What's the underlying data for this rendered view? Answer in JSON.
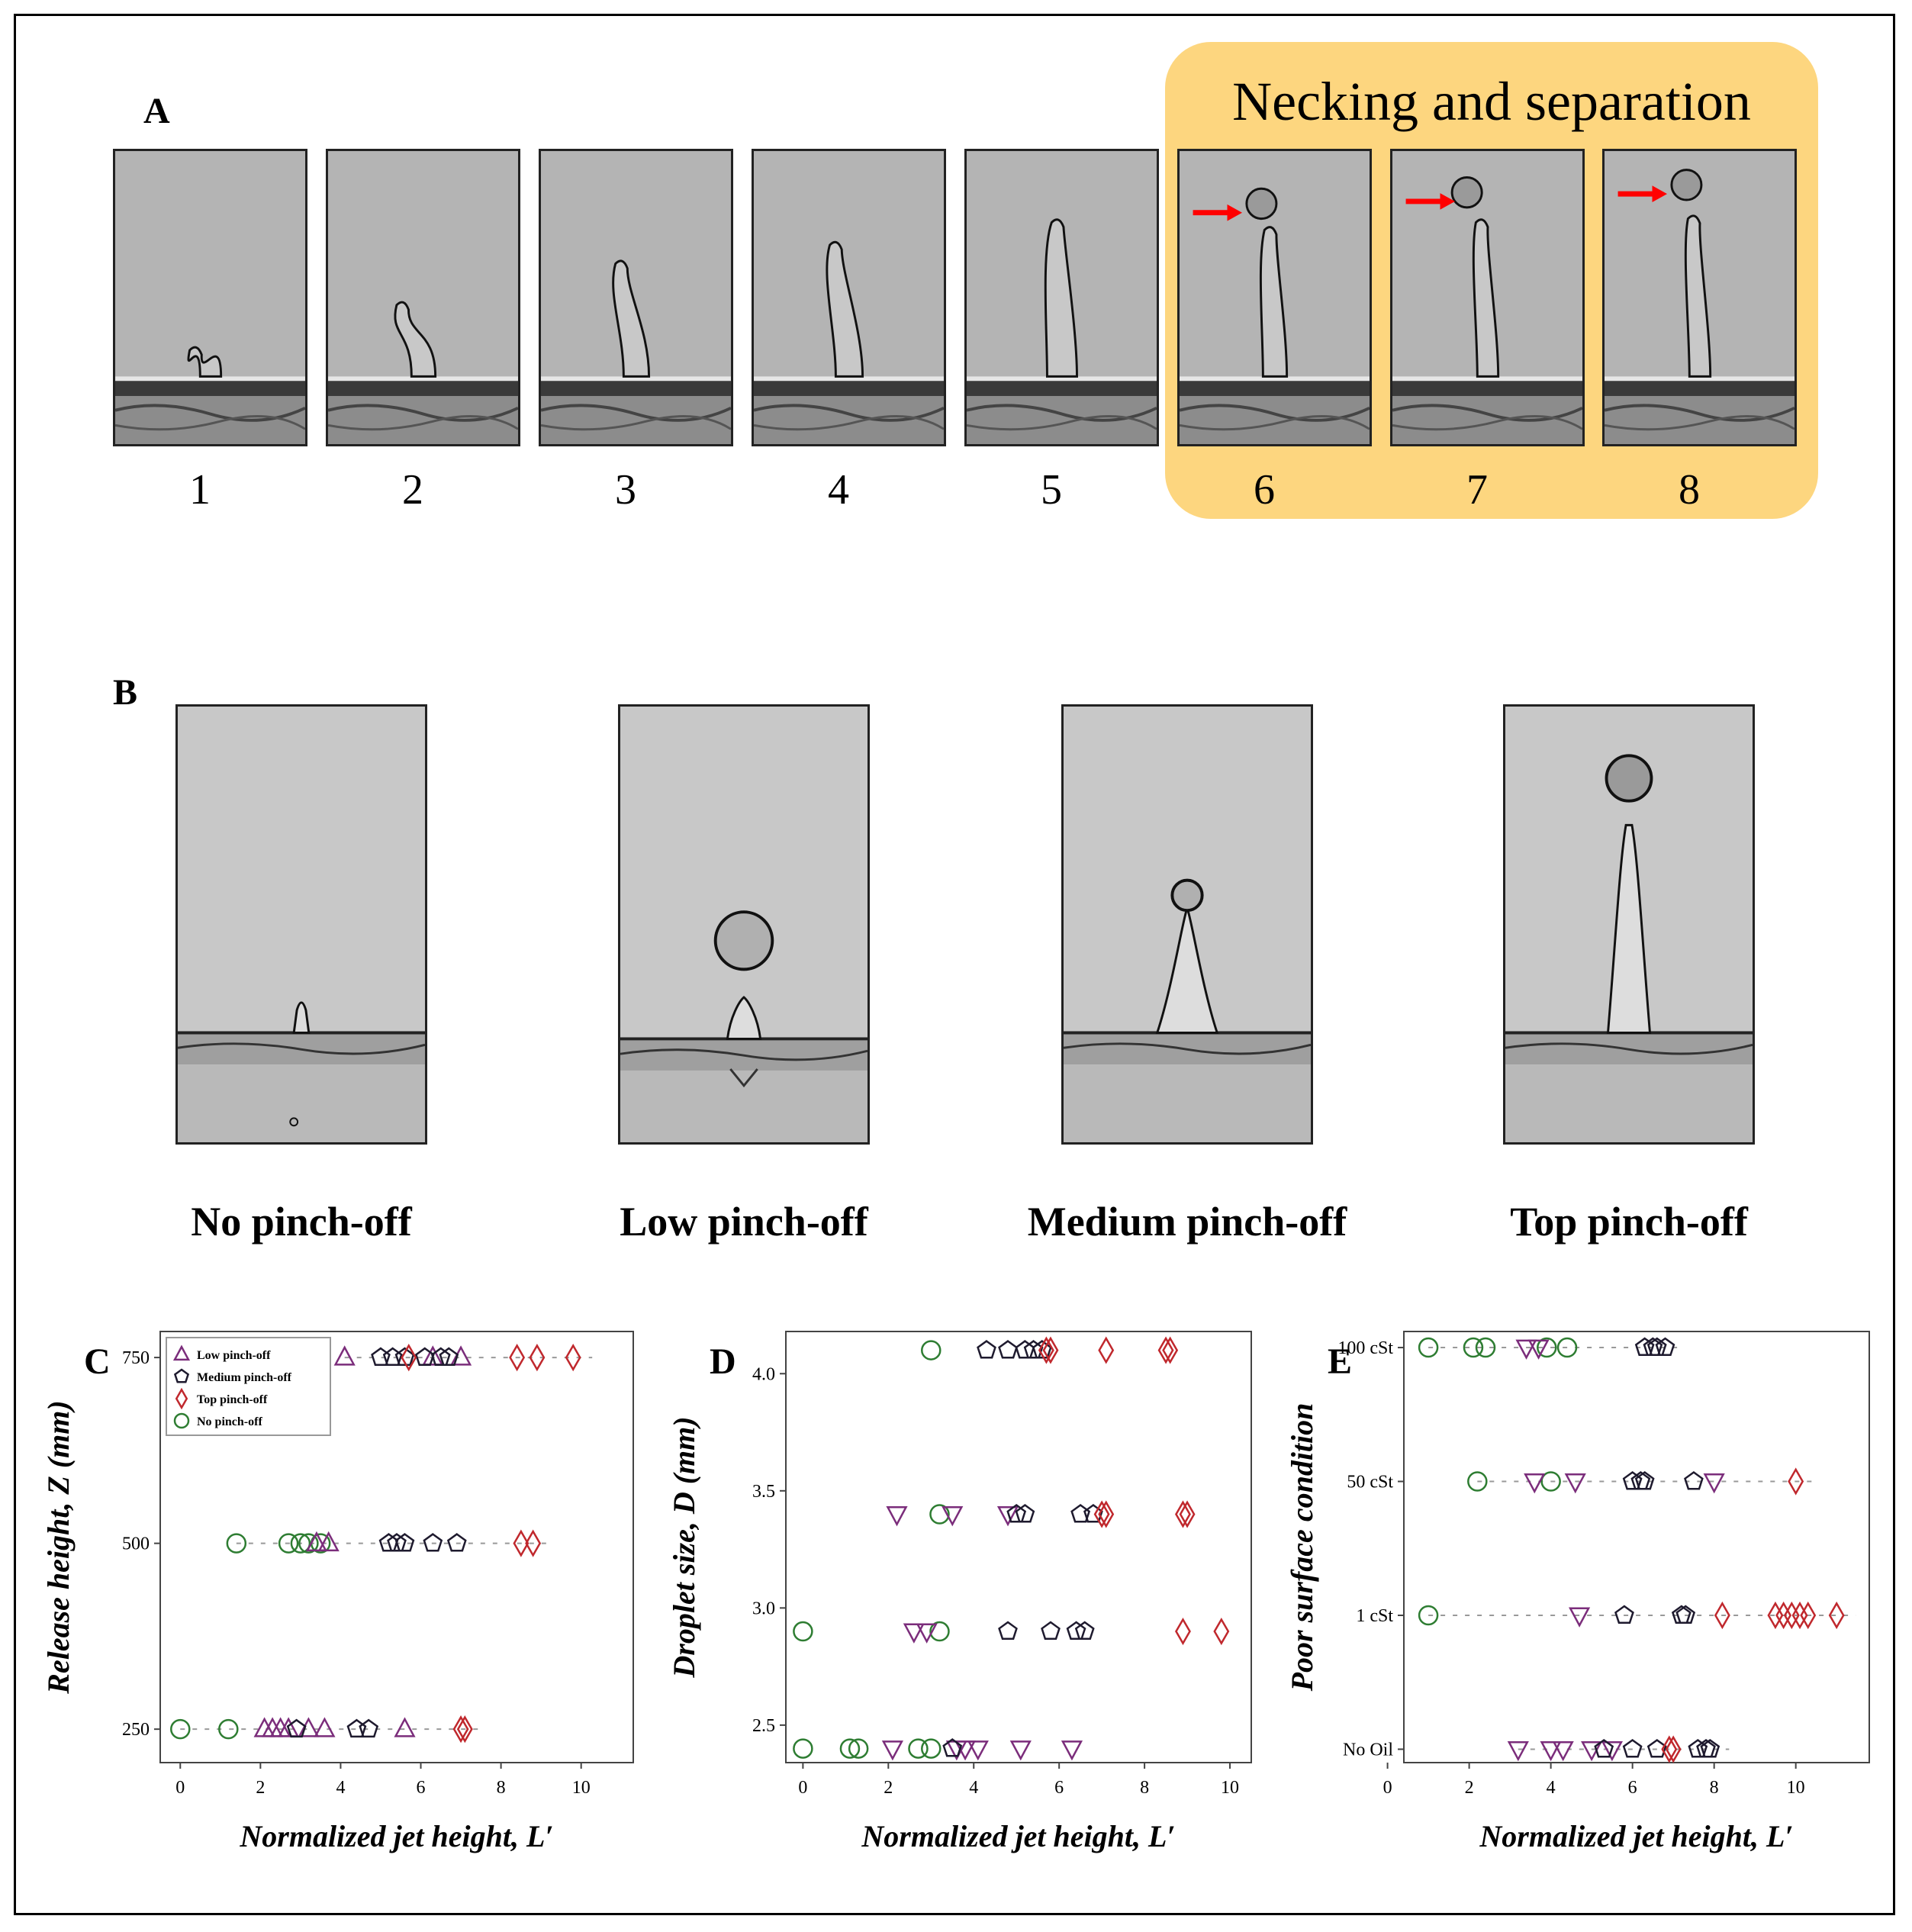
{
  "panel_a": {
    "letter": "A",
    "highlight_title": "Necking and separation",
    "frames": [
      "1",
      "2",
      "3",
      "4",
      "5",
      "6",
      "7",
      "8"
    ],
    "highlight_color": "#FDD67F",
    "arrow_color": "#FF0000"
  },
  "panel_b": {
    "letter": "B",
    "categories": [
      "No pinch-off",
      "Low pinch-off",
      "Medium pinch-off",
      "Top pinch-off"
    ]
  },
  "chart_data": [
    {
      "id": "C",
      "type": "scatter",
      "xlabel": "Normalized jet height, L′",
      "ylabel": "Release height, Z (mm)",
      "xlim": [
        -0.5,
        11.3
      ],
      "ylim": [
        205,
        785
      ],
      "xticks": [
        "0",
        "2",
        "4",
        "6",
        "8",
        "10"
      ],
      "xtick_values": [
        0,
        2,
        4,
        6,
        8,
        10
      ],
      "yticks": [
        "250",
        "500",
        "750"
      ],
      "ytick_values": [
        250,
        500,
        750
      ],
      "legend": {
        "placement": "top-left",
        "entries": [
          {
            "name": "Low pinch-off",
            "marker": "triangle",
            "color": "#7B2D7B"
          },
          {
            "name": "Medium pinch-off",
            "marker": "pentagon",
            "color": "#1E1A2E"
          },
          {
            "name": "Top pinch-off",
            "marker": "diamond",
            "color": "#C0282D"
          },
          {
            "name": "No pinch-off",
            "marker": "circle",
            "color": "#2E7D32"
          }
        ]
      },
      "series": [
        {
          "name": "No pinch-off",
          "marker": "circle",
          "color": "#2E7D32",
          "points": [
            [
              0,
              250
            ],
            [
              1.2,
              250
            ],
            [
              1.4,
              500
            ],
            [
              2.7,
              500
            ],
            [
              3.0,
              500
            ],
            [
              3.2,
              500
            ],
            [
              3.5,
              500
            ]
          ]
        },
        {
          "name": "Low pinch-off",
          "marker": "triangle",
          "color": "#7B2D7B",
          "points": [
            [
              2.1,
              250
            ],
            [
              2.3,
              250
            ],
            [
              2.5,
              250
            ],
            [
              2.7,
              250
            ],
            [
              3.2,
              250
            ],
            [
              3.6,
              250
            ],
            [
              5.6,
              250
            ],
            [
              3.4,
              500
            ],
            [
              3.7,
              500
            ],
            [
              4.1,
              750
            ],
            [
              6.3,
              750
            ],
            [
              7.0,
              750
            ]
          ]
        },
        {
          "name": "Medium pinch-off",
          "marker": "pentagon",
          "color": "#1E1A2E",
          "points": [
            [
              2.9,
              250
            ],
            [
              4.4,
              250
            ],
            [
              4.7,
              250
            ],
            [
              5.2,
              500
            ],
            [
              5.4,
              500
            ],
            [
              5.6,
              500
            ],
            [
              6.3,
              500
            ],
            [
              6.9,
              500
            ],
            [
              5.0,
              750
            ],
            [
              5.3,
              750
            ],
            [
              5.6,
              750
            ],
            [
              6.1,
              750
            ],
            [
              6.5,
              750
            ],
            [
              6.7,
              750
            ]
          ]
        },
        {
          "name": "Top pinch-off",
          "marker": "diamond",
          "color": "#C0282D",
          "points": [
            [
              7.0,
              250
            ],
            [
              7.1,
              250
            ],
            [
              8.5,
              500
            ],
            [
              8.8,
              500
            ],
            [
              5.7,
              750
            ],
            [
              8.4,
              750
            ],
            [
              8.9,
              750
            ],
            [
              9.8,
              750
            ]
          ]
        }
      ]
    },
    {
      "id": "D",
      "type": "scatter",
      "xlabel": "Normalized jet height, L′",
      "ylabel": "Droplet size, D (mm)",
      "xlim": [
        -0.4,
        10.5
      ],
      "ylim": [
        2.34,
        4.18
      ],
      "xticks": [
        "0",
        "2",
        "4",
        "6",
        "8",
        "10"
      ],
      "xtick_values": [
        0,
        2,
        4,
        6,
        8,
        10
      ],
      "yticks": [
        "2.5",
        "3.0",
        "3.5",
        "4.0"
      ],
      "ytick_values": [
        2.5,
        3.0,
        3.5,
        4.0
      ],
      "series": [
        {
          "name": "No pinch-off",
          "marker": "circle",
          "color": "#2E7D32",
          "points": [
            [
              0,
              2.4
            ],
            [
              1.1,
              2.4
            ],
            [
              1.3,
              2.4
            ],
            [
              2.7,
              2.4
            ],
            [
              3.0,
              2.4
            ],
            [
              0,
              2.9
            ],
            [
              3.2,
              2.9
            ],
            [
              3.0,
              4.1
            ],
            [
              3.2,
              3.4
            ]
          ]
        },
        {
          "name": "Low pinch-off",
          "marker": "triangle",
          "color": "#7B2D7B",
          "points": [
            [
              2.1,
              2.4
            ],
            [
              3.6,
              2.4
            ],
            [
              3.8,
              2.4
            ],
            [
              4.1,
              2.4
            ],
            [
              5.1,
              2.4
            ],
            [
              6.3,
              2.4
            ],
            [
              2.6,
              2.9
            ],
            [
              2.9,
              2.9
            ],
            [
              2.2,
              3.4
            ],
            [
              3.5,
              3.4
            ],
            [
              4.8,
              3.4
            ]
          ]
        },
        {
          "name": "Medium pinch-off",
          "marker": "pentagon",
          "color": "#1E1A2E",
          "points": [
            [
              3.5,
              2.4
            ],
            [
              4.8,
              2.9
            ],
            [
              5.8,
              2.9
            ],
            [
              6.4,
              2.9
            ],
            [
              6.6,
              2.9
            ],
            [
              5.0,
              3.4
            ],
            [
              5.2,
              3.4
            ],
            [
              6.5,
              3.4
            ],
            [
              6.8,
              3.4
            ],
            [
              4.3,
              4.1
            ],
            [
              4.8,
              4.1
            ],
            [
              5.2,
              4.1
            ],
            [
              5.4,
              4.1
            ],
            [
              5.6,
              4.1
            ]
          ]
        },
        {
          "name": "Top pinch-off",
          "marker": "diamond",
          "color": "#C0282D",
          "points": [
            [
              8.9,
              2.9
            ],
            [
              9.8,
              2.9
            ],
            [
              7.0,
              3.4
            ],
            [
              7.1,
              3.4
            ],
            [
              8.9,
              3.4
            ],
            [
              9.0,
              3.4
            ],
            [
              5.7,
              4.1
            ],
            [
              5.8,
              4.1
            ],
            [
              7.1,
              4.1
            ],
            [
              8.5,
              4.1
            ],
            [
              8.6,
              4.1
            ]
          ]
        }
      ]
    },
    {
      "id": "E",
      "type": "scatter",
      "xlabel": "Normalized jet height, L′",
      "ylabel": "Poor surface condition",
      "xlim": [
        0.4,
        11.8
      ],
      "ylim": [
        -0.1,
        3.12
      ],
      "xticks": [
        "0",
        "2",
        "4",
        "6",
        "8",
        "10"
      ],
      "xtick_values": [
        0,
        2,
        4,
        6,
        8,
        10
      ],
      "yticks": [
        "No Oil",
        "1 cSt",
        "50 cSt",
        "100 cSt"
      ],
      "ytick_values": [
        0,
        1,
        2,
        3
      ],
      "series": [
        {
          "name": "No pinch-off",
          "marker": "circle",
          "color": "#2E7D32",
          "points": [
            [
              1.0,
              3
            ],
            [
              2.1,
              3
            ],
            [
              2.4,
              3
            ],
            [
              3.9,
              3
            ],
            [
              4.4,
              3
            ],
            [
              2.2,
              2
            ],
            [
              4.0,
              2
            ],
            [
              1.0,
              1
            ]
          ]
        },
        {
          "name": "Low pinch-off",
          "marker": "triangle",
          "color": "#7B2D7B",
          "points": [
            [
              3.4,
              3
            ],
            [
              3.7,
              3
            ],
            [
              3.6,
              2
            ],
            [
              4.6,
              2
            ],
            [
              8.0,
              2
            ],
            [
              4.7,
              1
            ],
            [
              3.2,
              0
            ],
            [
              4.0,
              0
            ],
            [
              4.3,
              0
            ],
            [
              5.0,
              0
            ],
            [
              5.5,
              0
            ]
          ]
        },
        {
          "name": "Medium pinch-off",
          "marker": "pentagon",
          "color": "#1E1A2E",
          "points": [
            [
              6.3,
              3
            ],
            [
              6.5,
              3
            ],
            [
              6.6,
              3
            ],
            [
              6.8,
              3
            ],
            [
              6.0,
              2
            ],
            [
              6.2,
              2
            ],
            [
              6.3,
              2
            ],
            [
              7.5,
              2
            ],
            [
              5.8,
              1
            ],
            [
              7.2,
              1
            ],
            [
              7.3,
              1
            ],
            [
              5.3,
              0
            ],
            [
              6.0,
              0
            ],
            [
              6.6,
              0
            ],
            [
              7.6,
              0
            ],
            [
              7.8,
              0
            ],
            [
              7.9,
              0
            ]
          ]
        },
        {
          "name": "Top pinch-off",
          "marker": "diamond",
          "color": "#C0282D",
          "points": [
            [
              10.0,
              2
            ],
            [
              8.2,
              1
            ],
            [
              9.5,
              1
            ],
            [
              9.7,
              1
            ],
            [
              9.9,
              1
            ],
            [
              10.1,
              1
            ],
            [
              10.3,
              1
            ],
            [
              11.0,
              1
            ],
            [
              6.9,
              0
            ],
            [
              7.0,
              0
            ]
          ]
        }
      ]
    }
  ]
}
